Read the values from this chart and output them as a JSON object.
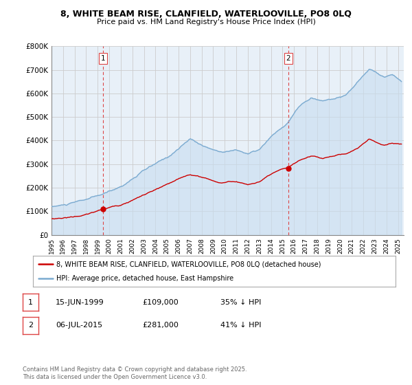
{
  "title_line1": "8, WHITE BEAM RISE, CLANFIELD, WATERLOOVILLE, PO8 0LQ",
  "title_line2": "Price paid vs. HM Land Registry's House Price Index (HPI)",
  "bg_color": "#ffffff",
  "plot_bg_color": "#e8f0f8",
  "grid_color": "#cccccc",
  "red_color": "#cc0000",
  "blue_color": "#7aaad0",
  "fill_color": "#c8ddf0",
  "dashed_color": "#dd4444",
  "ylim_min": 0,
  "ylim_max": 800000,
  "yticks": [
    0,
    100000,
    200000,
    300000,
    400000,
    500000,
    600000,
    700000,
    800000
  ],
  "ytick_labels": [
    "£0",
    "£100K",
    "£200K",
    "£300K",
    "£400K",
    "£500K",
    "£600K",
    "£700K",
    "£800K"
  ],
  "xmin_year": 1995.0,
  "xmax_year": 2025.5,
  "sale1_year": 1999.45,
  "sale1_price": 109000,
  "sale1_label": "1",
  "sale2_year": 2015.5,
  "sale2_price": 281000,
  "sale2_label": "2",
  "legend_line1": "8, WHITE BEAM RISE, CLANFIELD, WATERLOOVILLE, PO8 0LQ (detached house)",
  "legend_line2": "HPI: Average price, detached house, East Hampshire",
  "footer": "Contains HM Land Registry data © Crown copyright and database right 2025.\nThis data is licensed under the Open Government Licence v3.0.",
  "xtick_years": [
    1995,
    1996,
    1997,
    1998,
    1999,
    2000,
    2001,
    2002,
    2003,
    2004,
    2005,
    2006,
    2007,
    2008,
    2009,
    2010,
    2011,
    2012,
    2013,
    2014,
    2015,
    2016,
    2017,
    2018,
    2019,
    2020,
    2021,
    2022,
    2023,
    2024,
    2025
  ]
}
